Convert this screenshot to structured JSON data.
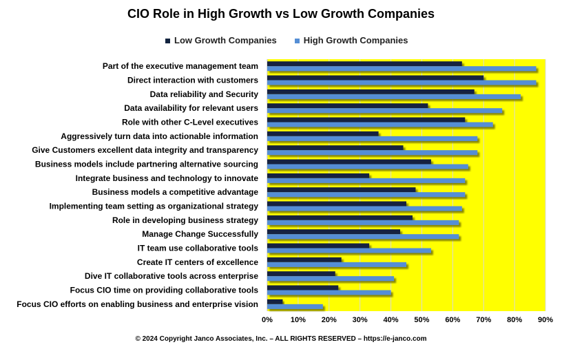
{
  "chart_data": {
    "type": "bar",
    "orientation": "horizontal",
    "title": "CIO Role in High Growth vs Low Growth Companies",
    "categories": [
      "Part of the executive management team",
      "Direct  interaction with customers",
      "Data reliability and Security",
      "Data availability for relevant users",
      "Role with other C-Level executives",
      "Aggressively turn data into actionable information",
      "Give Customers excellent data integrity and transparency",
      "Business models include partnering alternative sourcing",
      "Integrate business and technology to innovate",
      "Business models a competitive advantage",
      "Implementing team setting as organizational strategy",
      "Role in developing business strategy",
      "Manage Change Successfully",
      "IT team use collaborative tools",
      "Create IT centers of excellence",
      "Dive IT collaborative tools across enterprise",
      "Focus CIO time on providing collaborative tools",
      "Focus CIO efforts on enabling business and enterprise vision"
    ],
    "series": [
      {
        "name": "Low Growth Companies",
        "color": "#12233f",
        "values": [
          63,
          70,
          67,
          52,
          64,
          36,
          44,
          53,
          33,
          48,
          45,
          47,
          43,
          33,
          24,
          22,
          23,
          5
        ]
      },
      {
        "name": "High Growth Companies",
        "color": "#558ed5",
        "values": [
          87,
          87,
          82,
          76,
          73,
          68,
          68,
          65,
          64,
          64,
          63,
          62,
          62,
          53,
          45,
          41,
          40,
          18
        ]
      }
    ],
    "xlim": [
      0,
      90
    ],
    "xticks": [
      "0%",
      "10%",
      "20%",
      "30%",
      "40%",
      "50%",
      "60%",
      "70%",
      "80%",
      "90%"
    ],
    "plot_background": "#ffff00",
    "grid": true,
    "legend_position": "top"
  },
  "footer": "© 2024 Copyright Janco Associates, Inc. – ALL RIGHTS RESERVED – https://e-janco.com"
}
